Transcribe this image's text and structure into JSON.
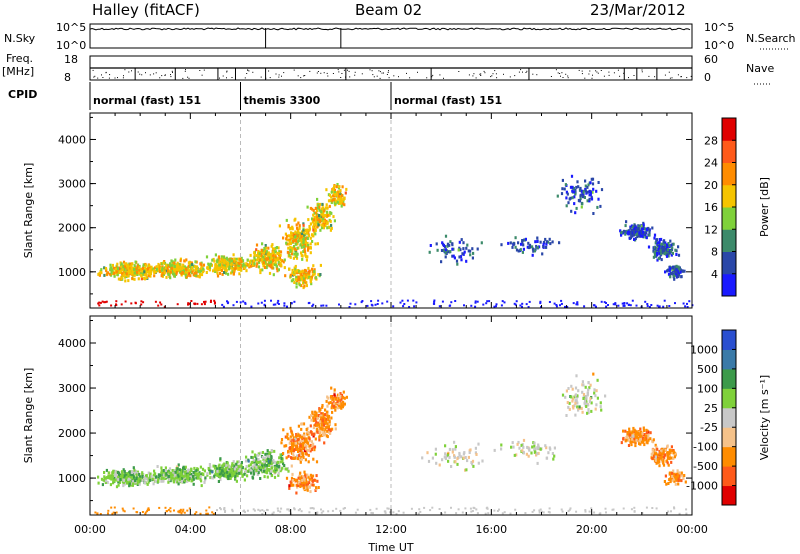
{
  "header": {
    "station": "Halley (fitACF)",
    "beam": "Beam 02",
    "date": "23/Mar/2012"
  },
  "top_panels": {
    "nsky_label": "N.Sky",
    "nsky_ticks": [
      "10^5",
      "10^0"
    ],
    "nsearch_label": "N.Search",
    "nsearch_ticks": [
      "10^5",
      "10^0"
    ],
    "freq_label": "Freq.",
    "freq_unit": "[MHz]",
    "freq_ticks": [
      "18",
      "8"
    ],
    "nave_label": "Nave",
    "nave_ticks": [
      "60",
      "0"
    ],
    "cpid_label": "CPID",
    "cpid_segments": [
      {
        "name": "normal (fast) 151",
        "start_h": 0,
        "end_h": 6
      },
      {
        "name": "themis 3300",
        "start_h": 6,
        "end_h": 12
      },
      {
        "name": "normal (fast) 151",
        "start_h": 12,
        "end_h": 24
      }
    ]
  },
  "chart_data": [
    {
      "type": "heatmap",
      "name": "power",
      "ylabel": "Slant Range [km]",
      "ylim": [
        180,
        4600
      ],
      "y_ticks": [
        "1000",
        "2000",
        "3000",
        "4000"
      ],
      "xlim_hours": [
        0,
        24
      ],
      "x_ticks": [
        "00:00",
        "04:00",
        "08:00",
        "12:00",
        "16:00",
        "20:00",
        "00:00"
      ],
      "colorbar_label": "Power [dB]",
      "colorbar_ticks": [
        "4",
        "8",
        "12",
        "16",
        "20",
        "24",
        "28"
      ],
      "colorbar_colors": [
        "#1a1aff",
        "#2a47a8",
        "#3c8a6a",
        "#7fd13a",
        "#f5c400",
        "#ff8c00",
        "#ff5a1a",
        "#e00000"
      ]
    },
    {
      "type": "heatmap",
      "name": "velocity",
      "ylabel": "Slant Range [km]",
      "ylim": [
        180,
        4600
      ],
      "y_ticks": [
        "1000",
        "2000",
        "3000",
        "4000"
      ],
      "xlim_hours": [
        0,
        24
      ],
      "x_ticks": [
        "00:00",
        "04:00",
        "08:00",
        "12:00",
        "16:00",
        "20:00",
        "00:00"
      ],
      "xlabel": "Time UT",
      "colorbar_label": "Velocity [m s⁻¹]",
      "colorbar_ticks": [
        "1000",
        "500",
        "100",
        "25",
        "-25",
        "-100",
        "-500",
        "-1000"
      ],
      "colorbar_colors": [
        "#2a4fd0",
        "#3a7aa8",
        "#3c9a4a",
        "#7fd13a",
        "#c8c8c8",
        "#f5c28a",
        "#ff8c00",
        "#ff5a1a",
        "#e00000"
      ]
    }
  ]
}
